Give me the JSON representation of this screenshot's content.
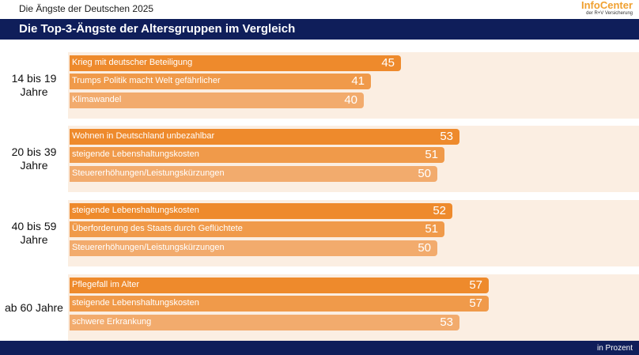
{
  "header": {
    "top_title": "Die Ängste der Deutschen 2025",
    "logo_main": "InfoCenter",
    "logo_sub": "der R+V Versicherung",
    "title": "Die Top-3-Ängste der Altersgruppen im Vergleich"
  },
  "footer": {
    "unit_note": "in Prozent"
  },
  "colors": {
    "navy": "#0f1e5a",
    "bar_dark": "#ee8a2c",
    "bar_mid": "#f09a4a",
    "bar_light": "#f2ab6d",
    "band": "#fbeee2"
  },
  "chart_data": {
    "type": "bar",
    "orientation": "horizontal",
    "title": "Die Top-3-Ängste der Altersgruppen im Vergleich",
    "unit": "in Prozent",
    "xlim": [
      0,
      100
    ],
    "groups": [
      {
        "name": "14 bis 19 Jahre",
        "items": [
          {
            "label": "Krieg mit deutscher Beteiligung",
            "value": 45
          },
          {
            "label": "Trumps Politik macht Welt gefährlicher",
            "value": 41
          },
          {
            "label": "Klimawandel",
            "value": 40
          }
        ]
      },
      {
        "name": "20 bis 39 Jahre",
        "items": [
          {
            "label": "Wohnen in Deutschland unbezahlbar",
            "value": 53
          },
          {
            "label": "steigende Lebenshaltungskosten",
            "value": 51
          },
          {
            "label": "Steuererhöhungen/Leistungskürzungen",
            "value": 50
          }
        ]
      },
      {
        "name": "40 bis 59 Jahre",
        "items": [
          {
            "label": "steigende Lebenshaltungskosten",
            "value": 52
          },
          {
            "label": "Überforderung des Staats durch Geflüchtete",
            "value": 51
          },
          {
            "label": "Steuererhöhungen/Leistungskürzungen",
            "value": 50
          }
        ]
      },
      {
        "name": "ab 60 Jahre",
        "items": [
          {
            "label": "Pflegefall im Alter",
            "value": 57
          },
          {
            "label": "steigende Lebenshaltungskosten",
            "value": 57
          },
          {
            "label": "schwere Erkrankung",
            "value": 53
          }
        ]
      }
    ]
  }
}
